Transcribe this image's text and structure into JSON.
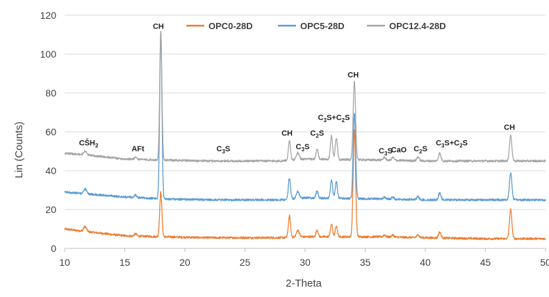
{
  "chart_data": {
    "type": "line",
    "title": "",
    "xlabel": "2-Theta",
    "ylabel": "Lin (Counts)",
    "xlim": [
      10,
      50
    ],
    "ylim": [
      0,
      120
    ],
    "x_ticks": [
      "10",
      "15",
      "20",
      "25",
      "30",
      "35",
      "40",
      "45",
      "50"
    ],
    "y_ticks": [
      "0",
      "20",
      "40",
      "60",
      "80",
      "100",
      "120"
    ],
    "grid": "horizontal",
    "legend": "top",
    "series": [
      {
        "name": "OPC0-28D",
        "color": "#ED7D31",
        "baseline": [
          [
            10,
            10
          ],
          [
            12,
            8.5
          ],
          [
            15,
            6.5
          ],
          [
            18,
            6
          ],
          [
            22,
            5.5
          ],
          [
            26,
            5.5
          ],
          [
            28,
            5.5
          ],
          [
            30,
            6
          ],
          [
            36,
            6
          ],
          [
            40,
            5.5
          ],
          [
            45,
            5
          ],
          [
            50,
            5
          ]
        ],
        "peaks": [
          [
            11.7,
            2.5,
            0.12
          ],
          [
            15.9,
            1.2,
            0.1
          ],
          [
            18.0,
            23,
            0.09
          ],
          [
            28.7,
            11,
            0.09
          ],
          [
            29.4,
            3.5,
            0.12
          ],
          [
            31.0,
            3.5,
            0.09
          ],
          [
            32.2,
            6.5,
            0.09
          ],
          [
            32.6,
            5.5,
            0.09
          ],
          [
            34.1,
            55,
            0.1
          ],
          [
            36.6,
            1,
            0.1
          ],
          [
            37.3,
            1,
            0.1
          ],
          [
            39.4,
            1.5,
            0.1
          ],
          [
            41.2,
            3,
            0.1
          ],
          [
            47.1,
            15,
            0.1
          ]
        ]
      },
      {
        "name": "OPC5-28D",
        "color": "#5B9BD5",
        "baseline": [
          [
            10,
            29
          ],
          [
            12,
            28
          ],
          [
            15,
            26.5
          ],
          [
            18,
            25.5
          ],
          [
            22,
            25
          ],
          [
            26,
            25
          ],
          [
            28,
            25
          ],
          [
            30,
            26
          ],
          [
            36,
            25.5
          ],
          [
            40,
            25
          ],
          [
            45,
            25
          ],
          [
            50,
            25
          ]
        ],
        "peaks": [
          [
            11.7,
            2.5,
            0.12
          ],
          [
            15.9,
            1.2,
            0.1
          ],
          [
            18.0,
            86,
            0.09
          ],
          [
            28.7,
            11,
            0.09
          ],
          [
            29.4,
            3.5,
            0.12
          ],
          [
            31.0,
            3.5,
            0.09
          ],
          [
            32.2,
            9.5,
            0.09
          ],
          [
            32.6,
            8.5,
            0.09
          ],
          [
            34.1,
            44,
            0.1
          ],
          [
            36.6,
            1,
            0.1
          ],
          [
            37.3,
            1,
            0.1
          ],
          [
            39.4,
            1.5,
            0.1
          ],
          [
            41.2,
            3.5,
            0.1
          ],
          [
            47.1,
            14,
            0.1
          ]
        ]
      },
      {
        "name": "OPC12.4-28D",
        "color": "#A5A5A5",
        "baseline": [
          [
            10,
            49
          ],
          [
            12,
            48
          ],
          [
            15,
            46
          ],
          [
            18,
            45.5
          ],
          [
            22,
            45
          ],
          [
            26,
            45
          ],
          [
            28,
            45
          ],
          [
            30,
            46
          ],
          [
            36,
            45.5
          ],
          [
            40,
            45
          ],
          [
            45,
            45
          ],
          [
            50,
            45
          ]
        ],
        "peaks": [
          [
            11.7,
            2,
            0.12
          ],
          [
            15.9,
            1.2,
            0.1
          ],
          [
            18.0,
            66,
            0.09
          ],
          [
            28.7,
            10,
            0.09
          ],
          [
            29.4,
            3.5,
            0.12
          ],
          [
            31.0,
            5,
            0.09
          ],
          [
            32.2,
            12,
            0.09
          ],
          [
            32.6,
            11,
            0.09
          ],
          [
            34.1,
            40,
            0.1
          ],
          [
            36.6,
            1.5,
            0.1
          ],
          [
            37.3,
            1.5,
            0.1
          ],
          [
            39.4,
            2,
            0.1
          ],
          [
            41.2,
            4,
            0.1
          ],
          [
            47.1,
            13,
            0.1
          ]
        ]
      }
    ],
    "annotations": [
      {
        "x": 12.0,
        "y": 53,
        "parts": [
          {
            "t": "CŠH"
          },
          {
            "t": "2",
            "sub": true
          }
        ]
      },
      {
        "x": 16.1,
        "y": 50,
        "parts": [
          {
            "t": "AFt"
          }
        ]
      },
      {
        "x": 17.8,
        "y": 113,
        "parts": [
          {
            "t": "CH"
          }
        ]
      },
      {
        "x": 23.2,
        "y": 50,
        "parts": [
          {
            "t": "C"
          },
          {
            "t": "3",
            "sub": true
          },
          {
            "t": "S"
          }
        ]
      },
      {
        "x": 28.5,
        "y": 58,
        "parts": [
          {
            "t": "CH"
          }
        ]
      },
      {
        "x": 29.8,
        "y": 51,
        "parts": [
          {
            "t": "C"
          },
          {
            "t": "3",
            "sub": true
          },
          {
            "t": "S"
          }
        ]
      },
      {
        "x": 31.0,
        "y": 58,
        "parts": [
          {
            "t": "C"
          },
          {
            "t": "2",
            "sub": true
          },
          {
            "t": "S"
          }
        ]
      },
      {
        "x": 32.4,
        "y": 66,
        "parts": [
          {
            "t": "C"
          },
          {
            "t": "3",
            "sub": true
          },
          {
            "t": "S+C"
          },
          {
            "t": "2",
            "sub": true
          },
          {
            "t": "S"
          }
        ]
      },
      {
        "x": 34.0,
        "y": 88,
        "parts": [
          {
            "t": "CH"
          }
        ]
      },
      {
        "x": 36.7,
        "y": 49,
        "parts": [
          {
            "t": "C"
          },
          {
            "t": "3",
            "sub": true
          },
          {
            "t": "S"
          }
        ]
      },
      {
        "x": 37.8,
        "y": 49.5,
        "parts": [
          {
            "t": "CaO"
          }
        ]
      },
      {
        "x": 39.6,
        "y": 50,
        "parts": [
          {
            "t": "C"
          },
          {
            "t": "2",
            "sub": true
          },
          {
            "t": "S"
          }
        ]
      },
      {
        "x": 42.2,
        "y": 53,
        "parts": [
          {
            "t": "C"
          },
          {
            "t": "3",
            "sub": true
          },
          {
            "t": "S+C"
          },
          {
            "t": "2",
            "sub": true
          },
          {
            "t": "S"
          }
        ]
      },
      {
        "x": 47.0,
        "y": 61,
        "parts": [
          {
            "t": "CH"
          }
        ]
      }
    ]
  }
}
